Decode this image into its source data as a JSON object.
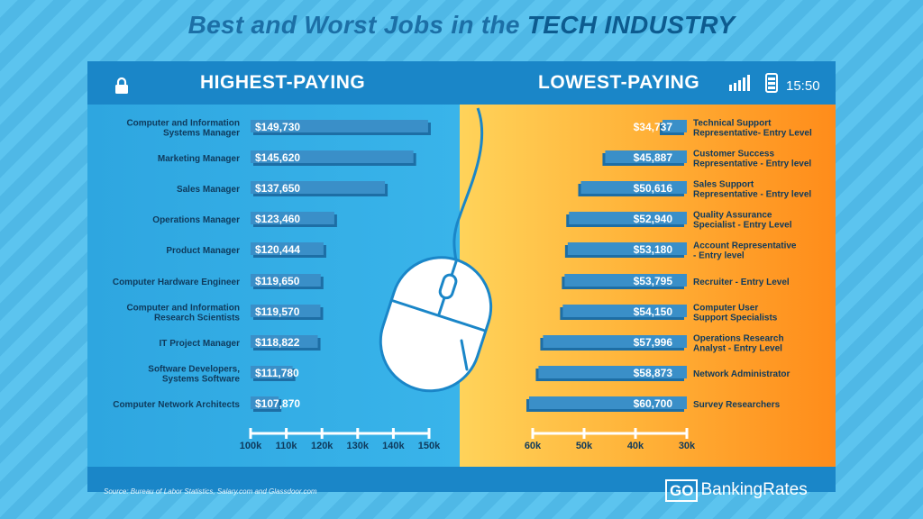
{
  "title_part1": "Best and Worst Jobs in the ",
  "title_part2": "TECH INDUSTRY",
  "header": {
    "left_title": "HIGHEST-PAYING",
    "right_title": "LOWEST-PAYING",
    "time": "15:50"
  },
  "footer": {
    "source": "Source: Bureau of Labor Statistics, Salary.com and Glassdoor.com",
    "brand_go": "GO",
    "brand_rest": "BankingRates"
  },
  "colors": {
    "background": "#5cc4ef",
    "left_panel": "#2ea6e0",
    "right_panel": "#ffb43a",
    "bar": "#3a8fc8",
    "title": "#1c6fa6"
  },
  "icons": [
    "lock-icon",
    "signal-icon",
    "phone-icon",
    "mouse-icon"
  ],
  "chart_data": [
    {
      "type": "bar",
      "title": "HIGHEST-PAYING",
      "orientation": "horizontal",
      "categories": [
        "Computer and Information\nSystems Manager",
        "Marketing Manager",
        "Sales Manager",
        "Operations Manager",
        "Product Manager",
        "Computer Hardware Engineer",
        "Computer and Information\nResearch Scientists",
        "IT Project Manager",
        "Software Developers,\nSystems Software",
        "Computer Network Architects"
      ],
      "values": [
        149730,
        145620,
        137650,
        123460,
        120444,
        119650,
        119570,
        118822,
        111780,
        107870
      ],
      "value_labels": [
        "$149,730",
        "$145,620",
        "$137,650",
        "$123,460",
        "$120,444",
        "$119,650",
        "$119,570",
        "$118,822",
        "$111,780",
        "$107,870"
      ],
      "tick_labels": [
        "100k",
        "110k",
        "120k",
        "130k",
        "140k",
        "150k"
      ],
      "xlim": [
        100000,
        150000
      ]
    },
    {
      "type": "bar",
      "title": "LOWEST-PAYING",
      "orientation": "horizontal",
      "axis_reversed": true,
      "categories": [
        "Technical Support\nRepresentative- Entry Level",
        "Customer Success\nRepresentative - Entry level",
        "Sales Support\nRepresentative - Entry level",
        "Quality Assurance\nSpecialist - Entry Level",
        "Account Representative\n- Entry level",
        "Recruiter - Entry Level",
        "Computer User\nSupport Specialists",
        "Operations Research\nAnalyst - Entry Level",
        "Network Administrator",
        "Survey Researchers"
      ],
      "values": [
        34737,
        45887,
        50616,
        52940,
        53180,
        53795,
        54150,
        57996,
        58873,
        60700
      ],
      "value_labels": [
        "$34,737",
        "$45,887",
        "$50,616",
        "$52,940",
        "$53,180",
        "$53,795",
        "$54,150",
        "$57,996",
        "$58,873",
        "$60,700"
      ],
      "tick_labels": [
        "60k",
        "50k",
        "40k",
        "30k"
      ],
      "xlim": [
        30000,
        60000
      ]
    }
  ]
}
